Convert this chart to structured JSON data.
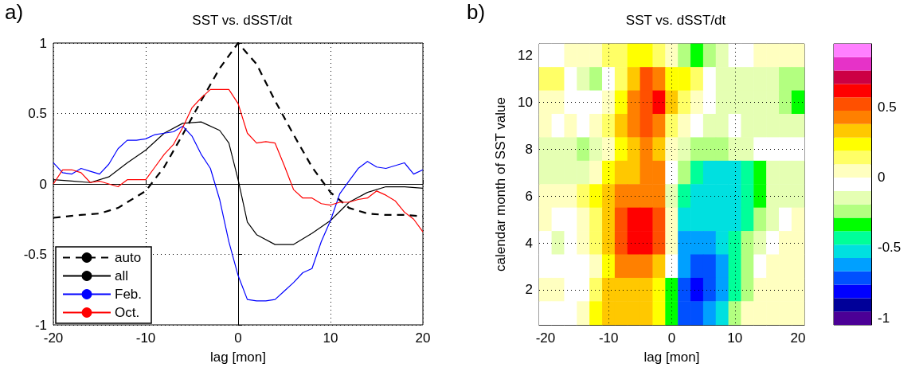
{
  "chart_data": [
    {
      "type": "line",
      "title": "SST vs. dSST/dt",
      "xlabel": "lag [mon]",
      "annotations": [
        "a)"
      ],
      "xlim": [
        -20,
        20
      ],
      "ylim": [
        -1,
        1
      ],
      "xticks": [
        -20,
        -10,
        0,
        10,
        20
      ],
      "yticks": [
        -1,
        -0.5,
        0,
        0.5,
        1
      ],
      "grid": true,
      "legend": "bottom left",
      "line_style": "solid",
      "x": [
        -20,
        -19,
        -18,
        -17,
        -16,
        -15,
        -14,
        -13,
        -12,
        -11,
        -10,
        -9,
        -8,
        -7,
        -6,
        -5,
        -4,
        -3,
        -2,
        -1,
        0,
        1,
        2,
        3,
        4,
        5,
        6,
        7,
        8,
        9,
        10,
        11,
        12,
        13,
        14,
        15,
        16,
        17,
        18,
        19,
        20
      ],
      "series": [
        {
          "name": "auto",
          "color": "#000000",
          "line_style": "dashed",
          "x": [
            -20,
            -17,
            -15,
            -13,
            -10,
            -8,
            -6,
            -4,
            -2,
            0,
            2,
            4,
            6,
            8,
            10,
            12,
            14,
            16,
            18,
            20
          ],
          "values": [
            -0.24,
            -0.22,
            -0.21,
            -0.17,
            -0.05,
            0.12,
            0.35,
            0.59,
            0.82,
            1,
            0.85,
            0.59,
            0.35,
            0.12,
            -0.06,
            -0.17,
            -0.21,
            -0.22,
            -0.22,
            -0.23
          ]
        },
        {
          "name": "all",
          "color": "#000000",
          "x": [
            -20,
            -18,
            -16,
            -14,
            -12,
            -10,
            -8,
            -6,
            -4,
            -2,
            -1,
            0,
            1,
            2,
            4,
            6,
            8,
            10,
            12,
            14,
            16,
            18,
            20
          ],
          "values": [
            0.03,
            0.02,
            0.01,
            0.05,
            0.15,
            0.24,
            0.36,
            0.43,
            0.44,
            0.38,
            0.29,
            0.03,
            -0.27,
            -0.36,
            -0.43,
            -0.43,
            -0.35,
            -0.26,
            -0.13,
            -0.06,
            -0.02,
            -0.02,
            -0.03
          ]
        },
        {
          "name": "Feb.",
          "color": "#0000ff",
          "values": [
            0.15,
            0.08,
            0.07,
            0.11,
            0.09,
            0.07,
            0.14,
            0.25,
            0.31,
            0.31,
            0.32,
            0.35,
            0.36,
            0.37,
            0.41,
            0.34,
            0.21,
            0.11,
            -0.11,
            -0.41,
            -0.65,
            -0.82,
            -0.83,
            -0.83,
            -0.82,
            -0.76,
            -0.7,
            -0.63,
            -0.6,
            -0.41,
            -0.26,
            -0.07,
            0.02,
            0.11,
            0.16,
            0.12,
            0.11,
            0.13,
            0.15,
            0.07,
            0.1
          ]
        },
        {
          "name": "Oct.",
          "color": "#ff0000",
          "values": [
            0,
            0.1,
            0.1,
            0.08,
            0.01,
            0.02,
            0,
            -0.02,
            0.03,
            0.03,
            0.03,
            0.12,
            0.21,
            0.28,
            0.4,
            0.54,
            0.61,
            0.67,
            0.67,
            0.67,
            0.57,
            0.36,
            0.29,
            0.3,
            0.29,
            0.13,
            -0.04,
            -0.1,
            -0.1,
            -0.14,
            -0.15,
            -0.13,
            -0.13,
            -0.11,
            -0.1,
            -0.05,
            -0.08,
            -0.12,
            -0.2,
            -0.25,
            -0.34
          ]
        }
      ]
    },
    {
      "type": "heatmap",
      "title": "SST vs. dSST/dt",
      "xlabel": "lag [mon]",
      "ylabel": "calendar month of SST value",
      "annotations": [
        "b)"
      ],
      "grid": true,
      "categories": [
        "-20",
        null,
        null,
        null,
        null,
        "-10",
        null,
        null,
        null,
        null,
        "0",
        null,
        null,
        null,
        null,
        "10",
        null,
        null,
        null,
        null,
        "20"
      ],
      "y_categories": [
        "12",
        null,
        "10",
        null,
        "8",
        null,
        "6",
        null,
        "4",
        null,
        "2",
        null
      ],
      "clim": [
        -1.05,
        0.95
      ],
      "cticks": [
        -1,
        -0.5,
        0,
        0.5
      ],
      "colors": [
        "#4b0096",
        "#000099",
        "#0000ff",
        "#0050ff",
        "#00a0ff",
        "#00e0e0",
        "#00ff99",
        "#00ff00",
        "#b3ff80",
        "#e5ffb3",
        "#ffffff",
        "#ffffc0",
        "#ffff66",
        "#ffff00",
        "#ffc800",
        "#ff8000",
        "#ff5000",
        "#ff0000",
        "#cc0044",
        "#e632c8",
        "#ff80ff"
      ],
      "cells": [
        [
          -0.05,
          -0.05,
          0.04,
          0.04,
          0.04,
          0.14,
          0.14,
          0.24,
          0.24,
          0.14,
          0.04,
          -0.24,
          -0.34,
          -0.24,
          -0.15,
          -0.05,
          -0.05,
          0.04,
          0.04,
          0.04,
          0.04
        ],
        [
          0.14,
          0.14,
          -0.05,
          -0.15,
          -0.24,
          -0.05,
          0.14,
          0.33,
          0.52,
          0.43,
          0.24,
          0.24,
          0.14,
          -0.05,
          -0.15,
          -0.15,
          -0.15,
          -0.15,
          -0.15,
          -0.24,
          -0.24
        ],
        [
          0.04,
          0.04,
          -0.05,
          -0.05,
          -0.05,
          0.04,
          0.24,
          0.43,
          0.52,
          0.62,
          0.33,
          0.14,
          0.04,
          -0.05,
          -0.15,
          -0.15,
          -0.15,
          -0.15,
          -0.15,
          -0.24,
          -0.34
        ],
        [
          0.04,
          -0.05,
          0.04,
          -0.05,
          0.04,
          0.14,
          0.33,
          0.43,
          0.52,
          0.43,
          0.14,
          0.04,
          -0.05,
          -0.15,
          -0.15,
          -0.05,
          -0.15,
          -0.15,
          -0.15,
          -0.15,
          -0.15
        ],
        [
          -0.15,
          -0.15,
          -0.15,
          -0.24,
          -0.15,
          0.04,
          0.24,
          0.33,
          0.43,
          0.33,
          0.04,
          -0.15,
          -0.24,
          -0.24,
          -0.24,
          -0.15,
          -0.15,
          -0.05,
          -0.05,
          -0.05,
          -0.05
        ],
        [
          -0.15,
          -0.15,
          -0.15,
          -0.15,
          0.04,
          0.24,
          0.33,
          0.33,
          0.43,
          0.43,
          -0.05,
          -0.24,
          -0.43,
          -0.53,
          -0.53,
          -0.53,
          -0.43,
          -0.34,
          -0.15,
          -0.15,
          -0.15
        ],
        [
          0.04,
          0.04,
          0.04,
          0.14,
          0.24,
          0.33,
          0.43,
          0.43,
          0.43,
          0.43,
          -0.15,
          -0.43,
          -0.53,
          -0.53,
          -0.53,
          -0.53,
          -0.43,
          -0.34,
          -0.15,
          -0.15,
          -0.15
        ],
        [
          0.04,
          -0.05,
          -0.05,
          0.04,
          0.14,
          0.33,
          0.52,
          0.62,
          0.62,
          0.52,
          0.04,
          -0.53,
          -0.53,
          -0.53,
          -0.53,
          -0.53,
          -0.43,
          -0.24,
          -0.15,
          -0.05,
          0.04
        ],
        [
          -0.05,
          -0.15,
          -0.05,
          0.04,
          0.14,
          0.33,
          0.52,
          0.62,
          0.62,
          0.52,
          0.04,
          -0.62,
          -0.62,
          -0.62,
          -0.53,
          -0.43,
          -0.24,
          -0.15,
          -0.05,
          0.04,
          0.04
        ],
        [
          -0.05,
          -0.05,
          -0.05,
          -0.05,
          0.04,
          0.24,
          0.43,
          0.43,
          0.43,
          0.33,
          -0.05,
          -0.62,
          -0.72,
          -0.72,
          -0.62,
          -0.43,
          -0.24,
          -0.05,
          0.04,
          0.04,
          0.04
        ],
        [
          0.04,
          0.04,
          -0.05,
          -0.05,
          0.14,
          0.33,
          0.33,
          0.33,
          0.33,
          0.24,
          -0.34,
          -0.72,
          -0.81,
          -0.72,
          -0.62,
          -0.43,
          -0.24,
          0.04,
          0.04,
          0.04,
          0.04
        ],
        [
          -0.05,
          -0.05,
          -0.05,
          0.04,
          0.24,
          0.33,
          0.33,
          0.33,
          0.33,
          0.24,
          -0.34,
          -0.72,
          -0.72,
          -0.62,
          -0.53,
          -0.24,
          0.04,
          0.04,
          0.04,
          0.04,
          0.04
        ]
      ]
    }
  ]
}
